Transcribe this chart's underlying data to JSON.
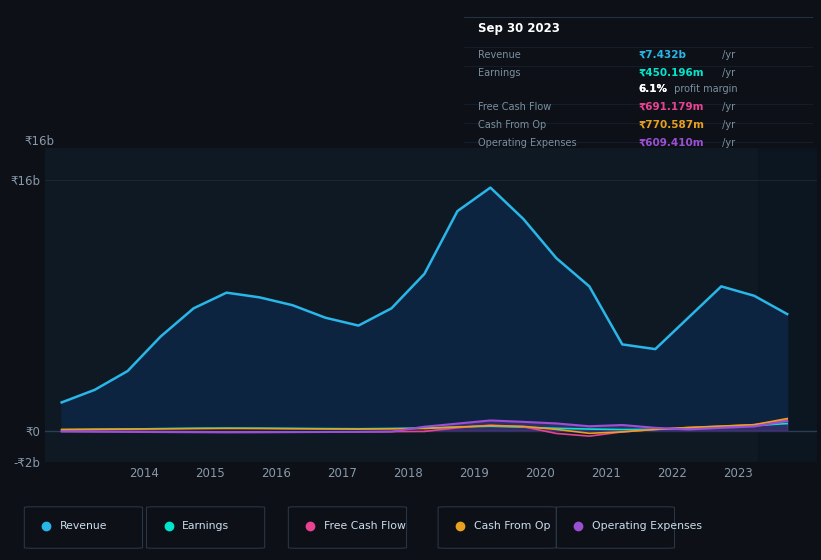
{
  "bg_color": "#0d1117",
  "chart_bg": "#0f1923",
  "grid_color": "#1e2d3d",
  "ylim": [
    -2000000000,
    18000000000
  ],
  "yticks": [
    -2000000000,
    0,
    16000000000
  ],
  "ytick_labels": [
    "-₹2b",
    "₹0",
    "₹16b"
  ],
  "years": [
    2012.75,
    2013.25,
    2013.75,
    2014.25,
    2014.75,
    2015.25,
    2015.75,
    2016.25,
    2016.75,
    2017.25,
    2017.75,
    2018.25,
    2018.75,
    2019.25,
    2019.75,
    2020.25,
    2020.75,
    2021.25,
    2021.75,
    2022.25,
    2022.75,
    2023.25,
    2023.75
  ],
  "revenue": [
    1800000000,
    2600000000,
    3800000000,
    6000000000,
    7800000000,
    8800000000,
    8500000000,
    8000000000,
    7200000000,
    6700000000,
    7800000000,
    10000000000,
    14000000000,
    15500000000,
    13500000000,
    11000000000,
    9200000000,
    5500000000,
    5200000000,
    7200000000,
    9200000000,
    8600000000,
    7432000000
  ],
  "earnings": [
    50000000,
    80000000,
    100000000,
    130000000,
    150000000,
    160000000,
    155000000,
    145000000,
    130000000,
    120000000,
    140000000,
    160000000,
    230000000,
    280000000,
    220000000,
    150000000,
    100000000,
    70000000,
    80000000,
    160000000,
    220000000,
    320000000,
    450196000
  ],
  "free_cash_flow": [
    -30000000,
    -40000000,
    -50000000,
    -60000000,
    -70000000,
    -80000000,
    -75000000,
    -90000000,
    -85000000,
    -75000000,
    -60000000,
    -50000000,
    180000000,
    350000000,
    250000000,
    -180000000,
    -350000000,
    -80000000,
    80000000,
    200000000,
    280000000,
    380000000,
    691179000
  ],
  "cash_from_op": [
    80000000,
    90000000,
    100000000,
    115000000,
    130000000,
    140000000,
    135000000,
    120000000,
    110000000,
    100000000,
    115000000,
    140000000,
    230000000,
    320000000,
    270000000,
    80000000,
    -170000000,
    -80000000,
    80000000,
    200000000,
    290000000,
    380000000,
    770587000
  ],
  "operating_expenses": [
    -60000000,
    -70000000,
    -80000000,
    -90000000,
    -100000000,
    -110000000,
    -105000000,
    -95000000,
    -85000000,
    -75000000,
    -65000000,
    250000000,
    450000000,
    650000000,
    560000000,
    460000000,
    280000000,
    360000000,
    180000000,
    80000000,
    180000000,
    270000000,
    609410000
  ],
  "revenue_color": "#29b6e8",
  "revenue_fill": "#0d2440",
  "earnings_color": "#00e5cc",
  "free_cash_flow_color": "#e84393",
  "cash_from_op_color": "#e8a020",
  "operating_expenses_color": "#9b4fd4",
  "xticks": [
    2014,
    2015,
    2016,
    2017,
    2018,
    2019,
    2020,
    2021,
    2022,
    2023
  ],
  "xlim": [
    2012.5,
    2024.2
  ],
  "info_box": {
    "date": "Sep 30 2023",
    "revenue_label": "Revenue",
    "revenue_val": "₹7.432b",
    "revenue_unit": " /yr",
    "earnings_label": "Earnings",
    "earnings_val": "₹450.196m",
    "earnings_unit": " /yr",
    "margin_val": "6.1%",
    "margin_text": " profit margin",
    "fcf_label": "Free Cash Flow",
    "fcf_val": "₹691.179m",
    "fcf_unit": " /yr",
    "cfo_label": "Cash From Op",
    "cfo_val": "₹770.587m",
    "cfo_unit": " /yr",
    "opex_label": "Operating Expenses",
    "opex_val": "₹609.410m",
    "opex_unit": " /yr"
  },
  "legend_entries": [
    "Revenue",
    "Earnings",
    "Free Cash Flow",
    "Cash From Op",
    "Operating Expenses"
  ],
  "legend_colors": [
    "#29b6e8",
    "#00e5cc",
    "#e84393",
    "#e8a020",
    "#9b4fd4"
  ]
}
